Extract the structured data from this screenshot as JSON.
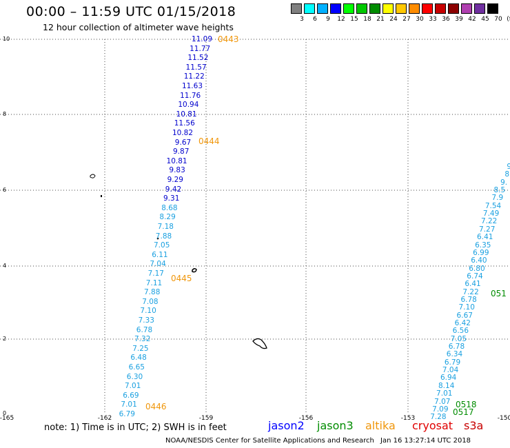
{
  "header": {
    "title": "00:00 – 11:59 UTC 01/15/2018",
    "subtitle": "12 hour collection of altimeter wave heights"
  },
  "colorbar": {
    "boxes": [
      "#808080",
      "#00ffff",
      "#00b0ff",
      "#0000ff",
      "#00ff00",
      "#00c800",
      "#008c00",
      "#ffff00",
      "#ffc800",
      "#ff8c00",
      "#ff0000",
      "#c80000",
      "#8c0000",
      "#b040b0",
      "#7030a0",
      "#000000"
    ],
    "labels": [
      "3",
      "6",
      "9",
      "12",
      "15",
      "18",
      "21",
      "24",
      "27",
      "30",
      "33",
      "36",
      "39",
      "42",
      "45",
      "70",
      "(ft)"
    ]
  },
  "axes": {
    "lat_labels": [
      "10",
      "8",
      "6",
      "4",
      "2",
      "0"
    ],
    "lon_labels": [
      "-165",
      "-162",
      "-159",
      "-156",
      "-153",
      "-150"
    ]
  },
  "tracks": [
    {
      "satellite": "jason2",
      "passes": [
        {
          "id": "0443",
          "color": "#f0960a"
        },
        {
          "id": "0444",
          "color": "#f0960a"
        },
        {
          "id": "0445",
          "color": "#f0960a"
        },
        {
          "id": "0446",
          "color": "#f0960a"
        }
      ],
      "observations": [
        {
          "v": "11.09",
          "c": "#0000cd"
        },
        {
          "v": "11.77",
          "c": "#0000cd"
        },
        {
          "v": "11.52",
          "c": "#0000cd"
        },
        {
          "v": "11.57",
          "c": "#0000cd"
        },
        {
          "v": "11.22",
          "c": "#0000cd"
        },
        {
          "v": "11.63",
          "c": "#0000cd"
        },
        {
          "v": "11.76",
          "c": "#0000cd"
        },
        {
          "v": "10.94",
          "c": "#0000cd"
        },
        {
          "v": "10.81",
          "c": "#0000cd"
        },
        {
          "v": "11.56",
          "c": "#0000cd"
        },
        {
          "v": "10.82",
          "c": "#0000cd"
        },
        {
          "v": "9.67",
          "c": "#0000cd"
        },
        {
          "v": "9.87",
          "c": "#0000cd"
        },
        {
          "v": "10.81",
          "c": "#0000cd"
        },
        {
          "v": "9.83",
          "c": "#0000cd"
        },
        {
          "v": "9.29",
          "c": "#0000cd"
        },
        {
          "v": "9.42",
          "c": "#0000cd"
        },
        {
          "v": "9.31",
          "c": "#0000cd"
        },
        {
          "v": "8.68",
          "c": "#1aa0e0"
        },
        {
          "v": "8.29",
          "c": "#1aa0e0"
        },
        {
          "v": "7.18",
          "c": "#1aa0e0"
        },
        {
          "v": "7.88",
          "c": "#1aa0e0"
        },
        {
          "v": "7.05",
          "c": "#1aa0e0"
        },
        {
          "v": "6.11",
          "c": "#1aa0e0"
        },
        {
          "v": "7.04",
          "c": "#1aa0e0"
        },
        {
          "v": "7.17",
          "c": "#1aa0e0"
        },
        {
          "v": "7.11",
          "c": "#1aa0e0"
        },
        {
          "v": "7.88",
          "c": "#1aa0e0"
        },
        {
          "v": "7.08",
          "c": "#1aa0e0"
        },
        {
          "v": "7.10",
          "c": "#1aa0e0"
        },
        {
          "v": "7.33",
          "c": "#1aa0e0"
        },
        {
          "v": "6.78",
          "c": "#1aa0e0"
        },
        {
          "v": "7.32",
          "c": "#1aa0e0"
        },
        {
          "v": "7.25",
          "c": "#1aa0e0"
        },
        {
          "v": "6.48",
          "c": "#1aa0e0"
        },
        {
          "v": "6.65",
          "c": "#1aa0e0"
        },
        {
          "v": "6.30",
          "c": "#1aa0e0"
        },
        {
          "v": "7.01",
          "c": "#1aa0e0"
        },
        {
          "v": "6.69",
          "c": "#1aa0e0"
        },
        {
          "v": "7.01",
          "c": "#1aa0e0"
        },
        {
          "v": "6.79",
          "c": "#1aa0e0"
        }
      ]
    },
    {
      "satellite": "jason3",
      "passes": [
        {
          "id": "051",
          "color": "#008c00"
        },
        {
          "id": "0518",
          "color": "#008c00"
        },
        {
          "id": "0517",
          "color": "#008c00"
        }
      ],
      "observations": [
        {
          "v": "9",
          "c": "#1aa0e0"
        },
        {
          "v": "8",
          "c": "#1aa0e0"
        },
        {
          "v": "9.",
          "c": "#1aa0e0"
        },
        {
          "v": "8.5",
          "c": "#1aa0e0"
        },
        {
          "v": "7.9",
          "c": "#1aa0e0"
        },
        {
          "v": "7.54",
          "c": "#1aa0e0"
        },
        {
          "v": "7.49",
          "c": "#1aa0e0"
        },
        {
          "v": "7.22",
          "c": "#1aa0e0"
        },
        {
          "v": "7.27",
          "c": "#1aa0e0"
        },
        {
          "v": "6.41",
          "c": "#1aa0e0"
        },
        {
          "v": "6.35",
          "c": "#1aa0e0"
        },
        {
          "v": "6.99",
          "c": "#1aa0e0"
        },
        {
          "v": "6.40",
          "c": "#1aa0e0"
        },
        {
          "v": "6.80",
          "c": "#1aa0e0"
        },
        {
          "v": "6.74",
          "c": "#1aa0e0"
        },
        {
          "v": "6.41",
          "c": "#1aa0e0"
        },
        {
          "v": "7.22",
          "c": "#1aa0e0"
        },
        {
          "v": "6.78",
          "c": "#1aa0e0"
        },
        {
          "v": "7.10",
          "c": "#1aa0e0"
        },
        {
          "v": "6.67",
          "c": "#1aa0e0"
        },
        {
          "v": "6.42",
          "c": "#1aa0e0"
        },
        {
          "v": "6.56",
          "c": "#1aa0e0"
        },
        {
          "v": "7.05",
          "c": "#1aa0e0"
        },
        {
          "v": "6.78",
          "c": "#1aa0e0"
        },
        {
          "v": "6.34",
          "c": "#1aa0e0"
        },
        {
          "v": "6.79",
          "c": "#1aa0e0"
        },
        {
          "v": "7.04",
          "c": "#1aa0e0"
        },
        {
          "v": "6.94",
          "c": "#1aa0e0"
        },
        {
          "v": "8.14",
          "c": "#1aa0e0"
        },
        {
          "v": "7.01",
          "c": "#1aa0e0"
        },
        {
          "v": "7.07",
          "c": "#1aa0e0"
        },
        {
          "v": "7.09",
          "c": "#1aa0e0"
        },
        {
          "v": "7.28",
          "c": "#1aa0e0"
        }
      ]
    }
  ],
  "footer": {
    "note": "note:  1) Time is in UTC;  2) SWH is in feet",
    "legend": [
      {
        "label": "jason2",
        "color": "#0000ff"
      },
      {
        "label": "jason3",
        "color": "#008c00"
      },
      {
        "label": "altika",
        "color": "#f0960a"
      },
      {
        "label": "cryosat",
        "color": "#e00000"
      },
      {
        "label": "s3a",
        "color": "#c80000"
      }
    ],
    "credit": "NOAA/NESDIS Center for Satellite Applications and Research",
    "timestamp": "Jan 16 13:27:14 UTC 2018"
  }
}
